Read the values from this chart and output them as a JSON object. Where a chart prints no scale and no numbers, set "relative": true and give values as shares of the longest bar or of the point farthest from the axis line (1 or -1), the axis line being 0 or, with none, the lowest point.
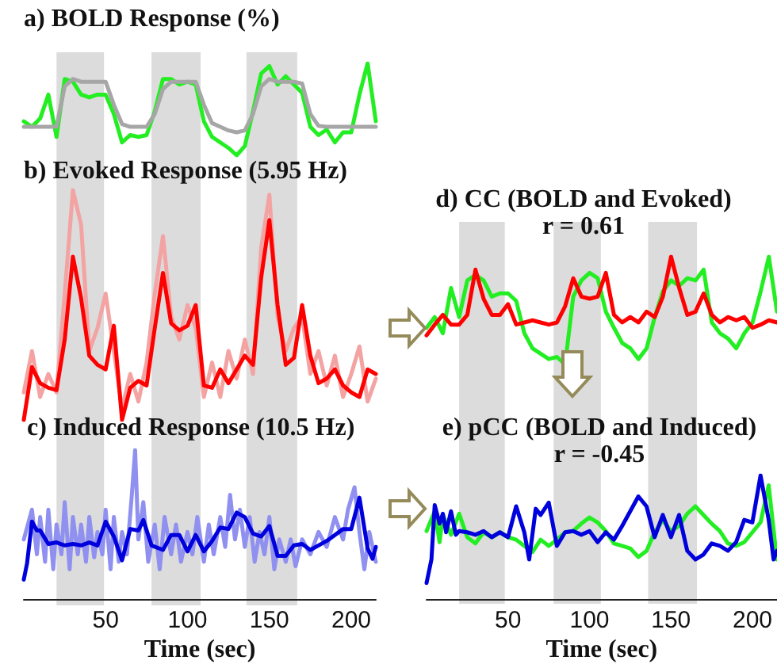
{
  "chart_data": [
    {
      "type": "line",
      "title": "a) BOLD Response (%)",
      "relative": true,
      "tick_labels": false,
      "categories": [
        null,
        null,
        null,
        null,
        null,
        null,
        null,
        null,
        null,
        null,
        null,
        null,
        null,
        null,
        null,
        null,
        null,
        null,
        null,
        null,
        null,
        null,
        null,
        null,
        null,
        null,
        null,
        null,
        null,
        null,
        null,
        null,
        null,
        null,
        null,
        null,
        null,
        null,
        null,
        null,
        null,
        null,
        null,
        null
      ],
      "series": [
        {
          "color": "#22ee22",
          "values": [
            0.37,
            0.31,
            0.4,
            0.66,
            0.2,
            0.83,
            0.8,
            0.66,
            0.63,
            0.66,
            0.66,
            0.45,
            0.14,
            0.22,
            0.2,
            0.22,
            0.48,
            0.83,
            0.83,
            0.77,
            0.8,
            0.77,
            0.37,
            0.2,
            0.14,
            0.08,
            0.0,
            0.1,
            0.48,
            0.89,
            0.97,
            0.77,
            0.86,
            0.77,
            0.68,
            0.31,
            0.22,
            0.28,
            0.14,
            0.25,
            0.25,
            0.66,
            1.0,
            0.37
          ]
        },
        {
          "color": "#a6a6a6",
          "values": [
            0.31,
            0.31,
            0.31,
            0.31,
            0.31,
            0.75,
            0.83,
            0.8,
            0.8,
            0.8,
            0.8,
            0.55,
            0.34,
            0.31,
            0.31,
            0.31,
            0.45,
            0.72,
            0.8,
            0.8,
            0.8,
            0.8,
            0.55,
            0.35,
            0.31,
            0.27,
            0.25,
            0.27,
            0.45,
            0.75,
            0.83,
            0.8,
            0.8,
            0.8,
            0.78,
            0.45,
            0.32,
            0.31,
            0.31,
            0.31,
            0.31,
            0.31,
            0.31,
            0.31
          ]
        }
      ]
    },
    {
      "type": "line",
      "title": "b) Evoked Response (5.95 Hz)",
      "relative": true,
      "tick_labels": false,
      "categories": [
        null,
        null,
        null,
        null,
        null,
        null,
        null,
        null,
        null,
        null,
        null,
        null,
        null,
        null,
        null,
        null,
        null,
        null,
        null,
        null,
        null,
        null,
        null,
        null,
        null,
        null,
        null,
        null,
        null,
        null,
        null,
        null,
        null,
        null,
        null,
        null,
        null,
        null,
        null,
        null,
        null,
        null,
        null,
        null
      ],
      "series": [
        {
          "color": "#f4a3a3",
          "values": [
            0.12,
            0.3,
            0.1,
            0.2,
            0.12,
            0.55,
            1.0,
            0.85,
            0.3,
            0.4,
            0.55,
            0.3,
            0.05,
            0.2,
            0.08,
            0.25,
            0.55,
            0.8,
            0.45,
            0.35,
            0.5,
            0.4,
            0.1,
            0.25,
            0.1,
            0.3,
            0.18,
            0.35,
            0.2,
            0.75,
            0.98,
            0.45,
            0.3,
            0.4,
            0.45,
            0.2,
            0.3,
            0.15,
            0.28,
            0.1,
            0.2,
            0.32,
            0.08,
            0.18
          ]
        },
        {
          "color": "#ff0000",
          "values": [
            0.0,
            0.23,
            0.16,
            0.14,
            0.13,
            0.35,
            0.71,
            0.53,
            0.28,
            0.24,
            0.22,
            0.41,
            0.0,
            0.14,
            0.17,
            0.15,
            0.4,
            0.64,
            0.42,
            0.39,
            0.41,
            0.5,
            0.15,
            0.14,
            0.22,
            0.16,
            0.22,
            0.28,
            0.24,
            0.62,
            0.87,
            0.5,
            0.24,
            0.27,
            0.5,
            0.28,
            0.16,
            0.18,
            0.22,
            0.15,
            0.12,
            0.1,
            0.22,
            0.2
          ]
        }
      ]
    },
    {
      "type": "line",
      "title": "c) Induced Response (10.5 Hz)",
      "xlabel": "Time (sec)",
      "relative": true,
      "xlim": [
        0,
        215
      ],
      "xticks": [
        50,
        100,
        150,
        200
      ],
      "bands": [
        {
          "axis": "x",
          "from": 20,
          "to": 49,
          "color": "#dcdcdc"
        },
        {
          "axis": "x",
          "from": 78,
          "to": 108,
          "color": "#dcdcdc"
        },
        {
          "axis": "x",
          "from": 136,
          "to": 167,
          "color": "#dcdcdc"
        }
      ],
      "series": [
        {
          "color": "#9090f0",
          "x": [
            0,
            5,
            8,
            10,
            13,
            15,
            18,
            20,
            23,
            25,
            28,
            30,
            33,
            35,
            38,
            40,
            43,
            45,
            48,
            50,
            53,
            55,
            58,
            60,
            63,
            66,
            68,
            70,
            73,
            76,
            80,
            83,
            86,
            90,
            93,
            96,
            100,
            103,
            106,
            110,
            113,
            116,
            120,
            123,
            126,
            129,
            132,
            135,
            138,
            141,
            144,
            147,
            150,
            153,
            156,
            160,
            163,
            166,
            170,
            175,
            180,
            185,
            190,
            195,
            198,
            202,
            205,
            208,
            211,
            215
          ],
          "values": [
            0.4,
            0.6,
            0.3,
            0.55,
            0.25,
            0.6,
            0.2,
            0.5,
            0.3,
            0.65,
            0.2,
            0.55,
            0.3,
            0.5,
            0.25,
            0.55,
            0.28,
            0.45,
            0.3,
            0.6,
            0.2,
            0.55,
            0.25,
            0.45,
            0.3,
            0.7,
            1.0,
            0.4,
            0.65,
            0.25,
            0.5,
            0.2,
            0.55,
            0.3,
            0.5,
            0.25,
            0.45,
            0.3,
            0.55,
            0.25,
            0.5,
            0.3,
            0.55,
            0.35,
            0.7,
            0.4,
            0.6,
            0.35,
            0.55,
            0.25,
            0.45,
            0.3,
            0.55,
            0.2,
            0.4,
            0.25,
            0.4,
            0.22,
            0.4,
            0.3,
            0.45,
            0.35,
            0.55,
            0.4,
            0.6,
            0.75,
            0.45,
            0.2,
            0.45,
            0.25
          ]
        },
        {
          "color": "#0000dd",
          "x": [
            0,
            2,
            5,
            8,
            10,
            15,
            20,
            25,
            30,
            35,
            40,
            45,
            50,
            55,
            60,
            65,
            70,
            73,
            78,
            85,
            90,
            95,
            100,
            105,
            110,
            115,
            120,
            125,
            130,
            135,
            140,
            145,
            150,
            155,
            160,
            165,
            170,
            175,
            180,
            185,
            190,
            195,
            200,
            205,
            210,
            213,
            215
          ],
          "values": [
            0.13,
            0.24,
            0.52,
            0.46,
            0.46,
            0.37,
            0.38,
            0.36,
            0.37,
            0.36,
            0.38,
            0.36,
            0.52,
            0.42,
            0.26,
            0.47,
            0.46,
            0.53,
            0.36,
            0.33,
            0.43,
            0.43,
            0.32,
            0.43,
            0.32,
            0.39,
            0.48,
            0.47,
            0.58,
            0.55,
            0.44,
            0.42,
            0.49,
            0.29,
            0.29,
            0.36,
            0.37,
            0.33,
            0.36,
            0.39,
            0.43,
            0.47,
            0.47,
            0.68,
            0.34,
            0.27,
            0.35
          ]
        }
      ]
    },
    {
      "type": "line",
      "title": "d) CC (BOLD and Evoked)",
      "subtitle": "r = 0.61",
      "relative": true,
      "tick_labels": false,
      "categories": [
        null,
        null,
        null,
        null,
        null,
        null,
        null,
        null,
        null,
        null,
        null,
        null,
        null,
        null,
        null,
        null,
        null,
        null,
        null,
        null,
        null,
        null,
        null,
        null,
        null,
        null,
        null,
        null,
        null,
        null,
        null,
        null,
        null,
        null,
        null,
        null,
        null,
        null,
        null,
        null,
        null,
        null,
        null,
        null
      ],
      "series": [
        {
          "color": "#22ee22",
          "values": [
            0.34,
            0.44,
            0.29,
            0.71,
            0.44,
            0.78,
            0.83,
            0.78,
            0.63,
            0.66,
            0.66,
            0.59,
            0.29,
            0.15,
            0.1,
            0.05,
            0.07,
            0.0,
            0.63,
            0.78,
            0.85,
            0.8,
            0.49,
            0.34,
            0.2,
            0.15,
            0.05,
            0.15,
            0.44,
            0.68,
            0.78,
            0.73,
            0.8,
            0.78,
            0.88,
            0.39,
            0.29,
            0.24,
            0.15,
            0.29,
            0.39,
            0.68,
            1.0,
            0.49
          ]
        },
        {
          "color": "#ff0000",
          "values": [
            0.27,
            0.37,
            0.46,
            0.37,
            0.37,
            0.46,
            0.88,
            0.61,
            0.46,
            0.46,
            0.56,
            0.37,
            0.39,
            0.41,
            0.39,
            0.37,
            0.39,
            0.54,
            0.8,
            0.63,
            0.61,
            0.63,
            0.85,
            0.46,
            0.39,
            0.44,
            0.39,
            0.49,
            0.44,
            0.63,
            1.0,
            0.71,
            0.46,
            0.49,
            0.66,
            0.46,
            0.39,
            0.44,
            0.41,
            0.44,
            0.34,
            0.37,
            0.41,
            0.39
          ]
        }
      ]
    },
    {
      "type": "line",
      "title": "e) pCC (BOLD and Induced)",
      "subtitle": "r = -0.45",
      "xlabel": "Time (sec)",
      "relative": true,
      "xlim": [
        0,
        215
      ],
      "xticks": [
        50,
        100,
        150,
        200
      ],
      "bands": [
        {
          "axis": "x",
          "from": 20,
          "to": 48,
          "color": "#dcdcdc"
        },
        {
          "axis": "x",
          "from": 78,
          "to": 107,
          "color": "#dcdcdc"
        },
        {
          "axis": "x",
          "from": 136,
          "to": 166,
          "color": "#dcdcdc"
        }
      ],
      "series": [
        {
          "color": "#22ee22",
          "x": [
            0,
            5,
            8,
            10,
            15,
            20,
            25,
            30,
            35,
            40,
            45,
            50,
            55,
            60,
            65,
            70,
            75,
            80,
            85,
            90,
            95,
            100,
            105,
            110,
            115,
            120,
            125,
            130,
            135,
            140,
            145,
            150,
            155,
            160,
            165,
            170,
            175,
            180,
            185,
            190,
            195,
            200,
            205,
            210,
            215
          ],
          "values": [
            0.55,
            0.71,
            0.46,
            0.68,
            0.52,
            0.69,
            0.5,
            0.45,
            0.54,
            0.5,
            0.54,
            0.5,
            0.48,
            0.43,
            0.38,
            0.48,
            0.43,
            0.48,
            0.54,
            0.55,
            0.61,
            0.66,
            0.62,
            0.55,
            0.45,
            0.43,
            0.41,
            0.34,
            0.39,
            0.54,
            0.64,
            0.55,
            0.59,
            0.69,
            0.75,
            0.68,
            0.61,
            0.55,
            0.45,
            0.43,
            0.46,
            0.54,
            0.62,
            0.92,
            0.32
          ]
        },
        {
          "color": "#0000dd",
          "x": [
            0,
            3,
            5,
            8,
            10,
            12,
            15,
            18,
            20,
            25,
            30,
            35,
            40,
            45,
            50,
            55,
            60,
            63,
            67,
            70,
            75,
            80,
            85,
            90,
            95,
            100,
            105,
            110,
            115,
            120,
            125,
            130,
            135,
            140,
            145,
            150,
            155,
            160,
            165,
            170,
            175,
            180,
            185,
            190,
            195,
            200,
            205,
            210,
            213,
            215
          ],
          "values": [
            0.13,
            0.32,
            0.76,
            0.61,
            0.69,
            0.54,
            0.71,
            0.52,
            0.55,
            0.54,
            0.52,
            0.55,
            0.5,
            0.54,
            0.5,
            0.75,
            0.54,
            0.32,
            0.73,
            0.68,
            0.78,
            0.43,
            0.54,
            0.55,
            0.52,
            0.55,
            0.46,
            0.54,
            0.48,
            0.59,
            0.71,
            0.83,
            0.75,
            0.5,
            0.68,
            0.5,
            0.68,
            0.39,
            0.32,
            0.36,
            0.45,
            0.43,
            0.39,
            0.46,
            0.64,
            0.62,
            1.0,
            0.64,
            0.32,
            0.39
          ]
        }
      ]
    }
  ]
}
